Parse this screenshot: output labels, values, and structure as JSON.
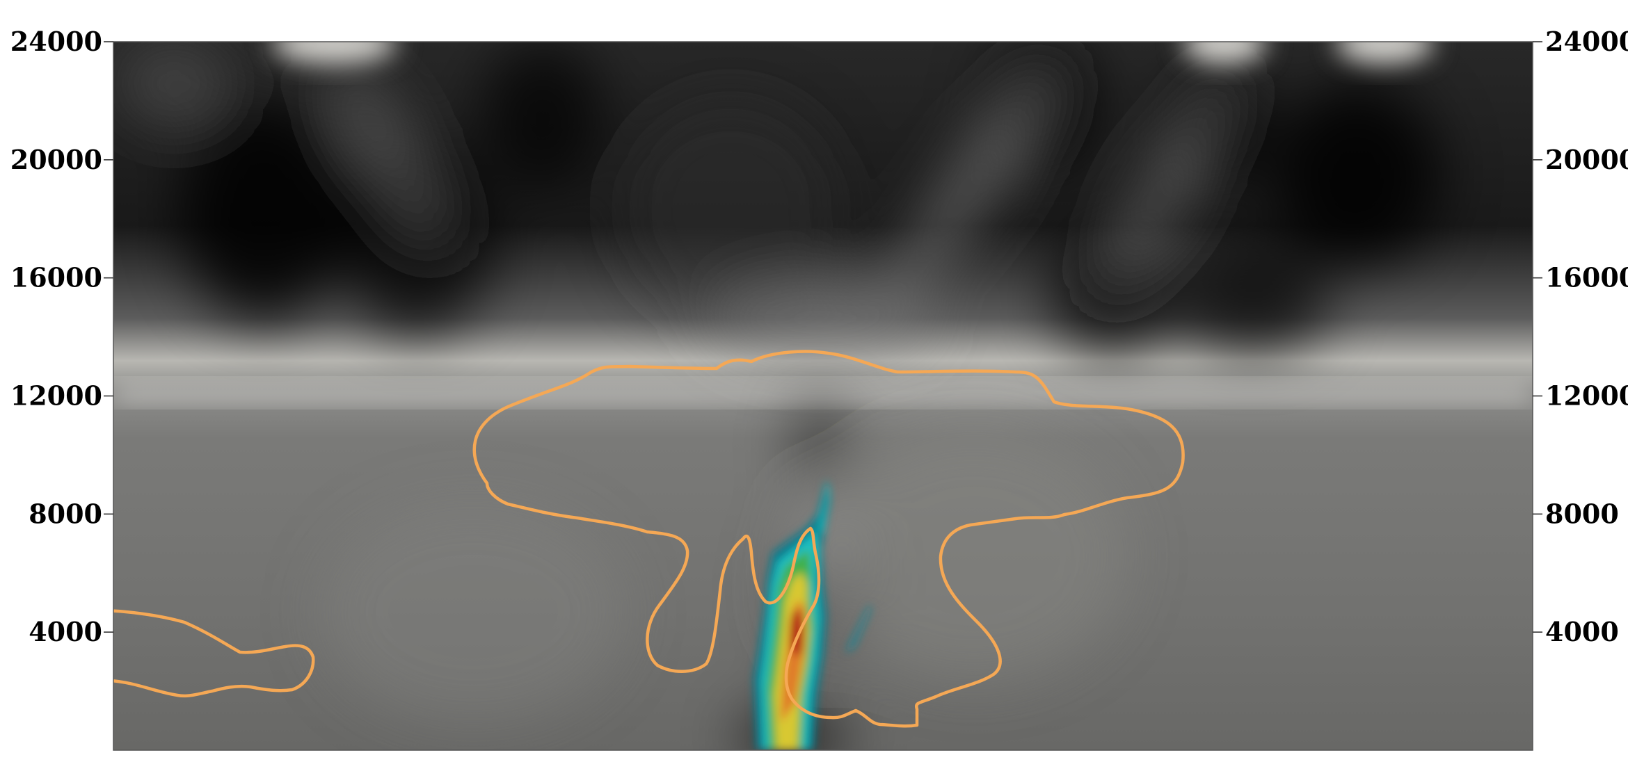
{
  "chart_data": {
    "type": "heatmap",
    "title": "",
    "xlabel": "",
    "ylabel": "",
    "ylim": [
      0,
      24000
    ],
    "yticks": [
      4000,
      8000,
      12000,
      16000,
      20000,
      24000
    ],
    "ytick_labels": [
      "4000",
      "8000",
      "12000",
      "16000",
      "20000",
      "24000"
    ],
    "axis_ticks_on": [
      "left",
      "right"
    ],
    "x_tick_labels_shown": false,
    "grid": false,
    "legend": "none",
    "background_field": {
      "colormap": "grayscale",
      "features": [
        "bright horizontal band near 12000",
        "dark wave patterns above 12000",
        "mid-gray lower region"
      ]
    },
    "filled_contour_field": {
      "colormap": "teal-green-yellow-red",
      "y_range": [
        0,
        9300
      ],
      "core_y": 4000
    },
    "contour_line": {
      "color": "#f5a855",
      "closed_regions": 2,
      "max_y": 13400
    },
    "colors": {
      "contour": "#f5a855",
      "background_dark": "#0a0a0a",
      "background_mid": "#6d6d6d",
      "background_light": "#d0cfca"
    }
  }
}
